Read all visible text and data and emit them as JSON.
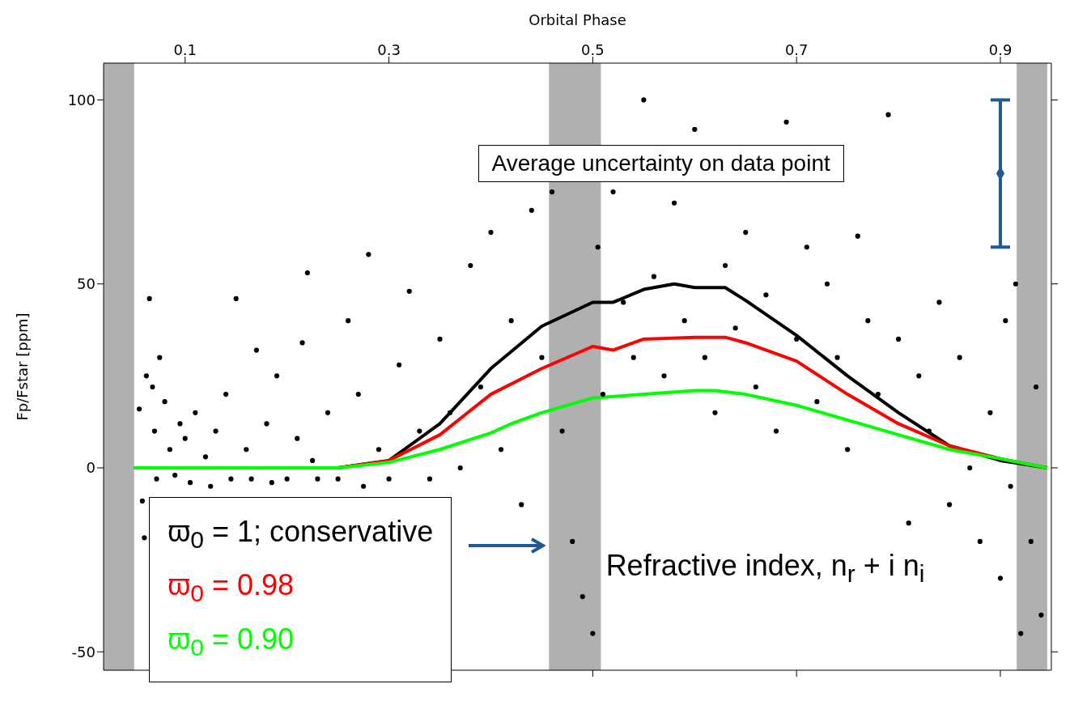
{
  "chart_data": {
    "type": "scatter",
    "xlabel": "Orbital Phase",
    "ylabel": "Fp/Fstar [ppm]",
    "xlim": [
      0.02,
      0.95
    ],
    "xticks": [
      0.1,
      0.3,
      0.5,
      0.7,
      0.9
    ],
    "ylim": [
      -55,
      110
    ],
    "yticks": [
      -50,
      0,
      50,
      100
    ],
    "legend": "bottom left",
    "annotations": [
      "Average uncertainty on data point",
      "Refractive index, n$_{r}$ + i n$_{i}$"
    ],
    "bands": [
      {
        "axis": "x",
        "from": 0.02,
        "to": 0.05,
        "color": "#b0b0b0"
      },
      {
        "axis": "x",
        "from": 0.457,
        "to": 0.508,
        "color": "#b0b0b0"
      },
      {
        "axis": "x",
        "from": 0.916,
        "to": 0.946,
        "color": "#b0b0b0"
      }
    ],
    "series": [
      {
        "color": "#000000",
        "marker": "circle",
        "x": [
          0.055,
          0.058,
          0.06,
          0.062,
          0.065,
          0.068,
          0.07,
          0.072,
          0.075,
          0.08,
          0.085,
          0.09,
          0.095,
          0.1,
          0.105,
          0.11,
          0.12,
          0.125,
          0.13,
          0.14,
          0.145,
          0.15,
          0.16,
          0.165,
          0.17,
          0.18,
          0.185,
          0.19,
          0.2,
          0.21,
          0.215,
          0.22,
          0.225,
          0.23,
          0.24,
          0.25,
          0.26,
          0.27,
          0.275,
          0.28,
          0.29,
          0.3,
          0.31,
          0.32,
          0.33,
          0.34,
          0.35,
          0.36,
          0.37,
          0.38,
          0.39,
          0.4,
          0.41,
          0.42,
          0.43,
          0.44,
          0.45,
          0.46,
          0.47,
          0.48,
          0.49,
          0.5,
          0.505,
          0.51,
          0.52,
          0.53,
          0.54,
          0.55,
          0.56,
          0.57,
          0.58,
          0.59,
          0.6,
          0.61,
          0.62,
          0.63,
          0.64,
          0.65,
          0.66,
          0.67,
          0.68,
          0.69,
          0.7,
          0.71,
          0.72,
          0.73,
          0.74,
          0.75,
          0.76,
          0.77,
          0.78,
          0.79,
          0.8,
          0.81,
          0.82,
          0.83,
          0.84,
          0.85,
          0.86,
          0.87,
          0.88,
          0.89,
          0.9,
          0.905,
          0.91,
          0.915,
          0.92,
          0.93,
          0.935,
          0.94
        ],
        "values": [
          16,
          -9,
          -19,
          25,
          46,
          22,
          10,
          -3,
          30,
          18,
          5,
          -2,
          12,
          8,
          -4,
          15,
          3,
          -5,
          10,
          20,
          -3,
          46,
          5,
          -3,
          32,
          12,
          -4,
          25,
          -3,
          8,
          34,
          53,
          2,
          -3,
          15,
          -3,
          40,
          20,
          -5,
          58,
          5,
          -3,
          28,
          48,
          10,
          -3,
          35,
          15,
          0,
          55,
          22,
          64,
          5,
          40,
          -10,
          70,
          30,
          75,
          10,
          -20,
          -35,
          -45,
          60,
          20,
          75,
          45,
          30,
          100,
          52,
          25,
          72,
          40,
          92,
          30,
          15,
          55,
          38,
          64,
          22,
          47,
          10,
          94,
          35,
          60,
          18,
          50,
          30,
          5,
          63,
          40,
          20,
          96,
          35,
          -15,
          25,
          10,
          45,
          -10,
          30,
          0,
          -20,
          15,
          -30,
          40,
          -5,
          50,
          -45,
          -20,
          22,
          -40
        ]
      },
      {
        "type": "scatter",
        "color": "#1f5a96",
        "marker": "diamond",
        "x": [
          0.9
        ],
        "values": [
          80
        ],
        "errors": [
          20
        ]
      },
      {
        "type": "line",
        "name": "ϖ$_{0}$ = 1; conservative",
        "color": "#000000",
        "x": [
          0.05,
          0.25,
          0.3,
          0.35,
          0.4,
          0.45,
          0.5,
          0.52,
          0.55,
          0.58,
          0.6,
          0.63,
          0.65,
          0.7,
          0.75,
          0.8,
          0.85,
          0.9,
          0.946
        ],
        "values": [
          0,
          0,
          2,
          12,
          27,
          38.5,
          45,
          45,
          48.5,
          50,
          49,
          49,
          45.5,
          36,
          25,
          15,
          6,
          2,
          0
        ]
      },
      {
        "type": "line",
        "name": "ϖ$_{0}$ = 0.98",
        "color": "#ff0000",
        "x": [
          0.05,
          0.25,
          0.3,
          0.35,
          0.4,
          0.45,
          0.5,
          0.52,
          0.55,
          0.6,
          0.63,
          0.65,
          0.7,
          0.75,
          0.8,
          0.85,
          0.9,
          0.946
        ],
        "values": [
          0,
          0,
          2,
          9,
          20,
          27,
          33,
          32,
          35,
          35.5,
          35.5,
          34,
          29,
          20,
          12,
          6,
          2.5,
          0
        ]
      },
      {
        "type": "line",
        "name": "ϖ$_{0}$ = 0.90",
        "color": "#00ff00",
        "x": [
          0.05,
          0.25,
          0.3,
          0.35,
          0.4,
          0.42,
          0.45,
          0.5,
          0.55,
          0.6,
          0.62,
          0.65,
          0.7,
          0.75,
          0.8,
          0.85,
          0.9,
          0.946
        ],
        "values": [
          0,
          0,
          1.5,
          5,
          9.5,
          12,
          15,
          19,
          20,
          21,
          21,
          20,
          17,
          13,
          9,
          5,
          2.5,
          0
        ]
      }
    ]
  }
}
